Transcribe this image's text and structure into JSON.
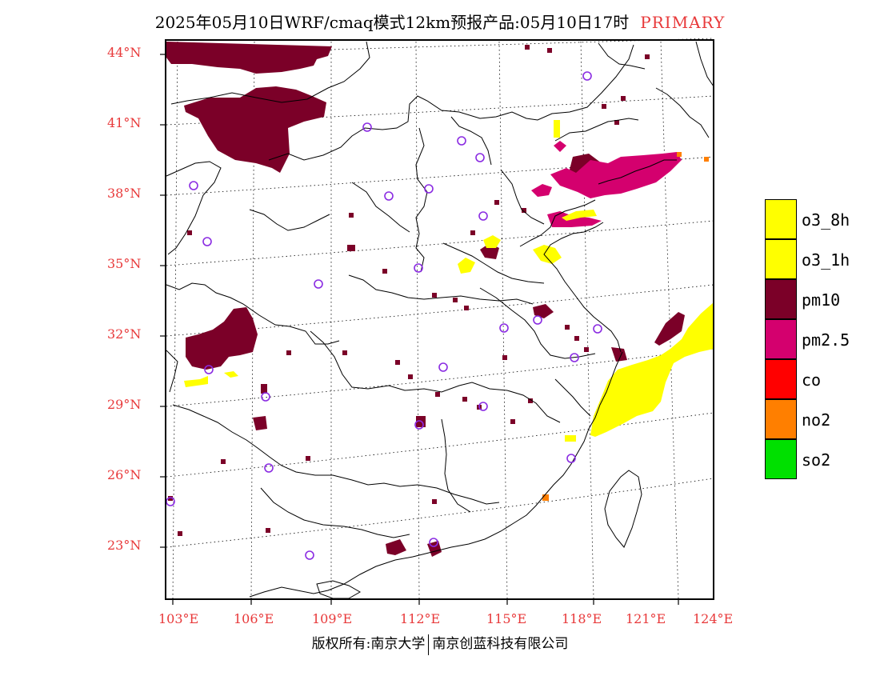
{
  "header": {
    "title": "2025年05月10日WRF/cmaq模式12km预报产品:05月10日17时",
    "tag": "PRIMARY"
  },
  "axes": {
    "lat_labels": [
      "44°N",
      "41°N",
      "38°N",
      "35°N",
      "32°N",
      "29°N",
      "26°N",
      "23°N"
    ],
    "lon_labels": [
      "103°E",
      "106°E",
      "109°E",
      "112°E",
      "115°E",
      "118°E",
      "121°E",
      "124°E"
    ],
    "label_color": "#e8393a"
  },
  "legend": [
    {
      "label": "o3_8h",
      "color": "#ffff00"
    },
    {
      "label": "o3_1h",
      "color": "#ffff00"
    },
    {
      "label": "pm10",
      "color": "#7b0028"
    },
    {
      "label": "pm2.5",
      "color": "#d4006e"
    },
    {
      "label": "co",
      "color": "#ff0000"
    },
    {
      "label": "no2",
      "color": "#ff7f00"
    },
    {
      "label": "so2",
      "color": "#00e000"
    }
  ],
  "footer": {
    "left": "版权所有:南京大学",
    "right": "南京创蓝科技有限公司"
  },
  "map": {
    "cities_icon": "circle-marker",
    "city_marker_color": "#8a2be2"
  }
}
